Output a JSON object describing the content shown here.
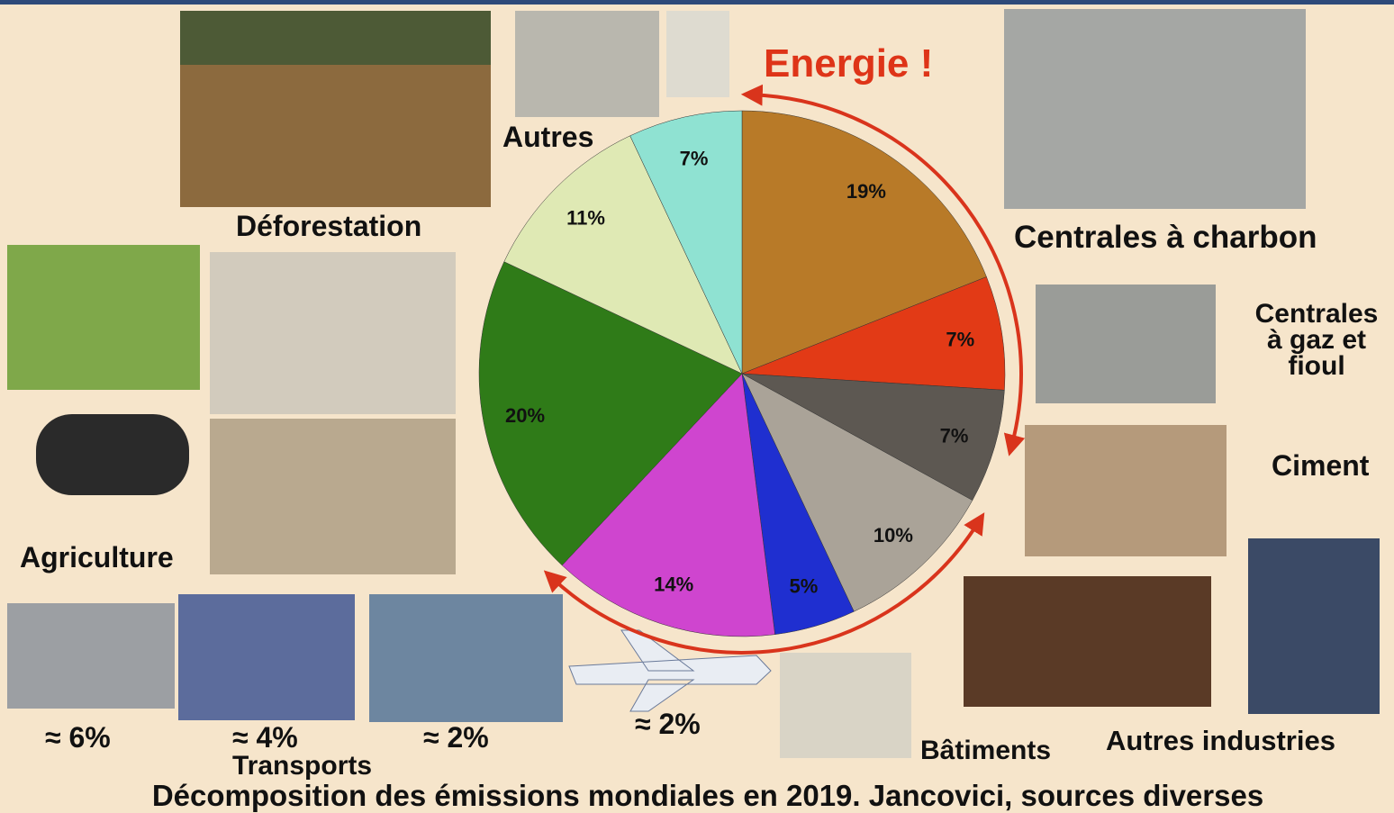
{
  "chart_data": {
    "type": "pie",
    "title": "Décomposition des émissions mondiales en 2019. Jancovici, sources diverses",
    "values": [
      19,
      7,
      7,
      10,
      5,
      14,
      20,
      11,
      7
    ],
    "value_labels": [
      "19%",
      "7%",
      "7%",
      "10%",
      "5%",
      "14%",
      "20%",
      "11%",
      "7%"
    ],
    "colors": [
      "#b87a28",
      "#e23a16",
      "#5d5852",
      "#aaa398",
      "#1f2fd0",
      "#cf45cf",
      "#2f7b18",
      "#dfe9b4",
      "#8fe2d2"
    ],
    "annotations": [
      "Energie !",
      "Autres",
      "Déforestation",
      "Centrales à charbon",
      "Centrales",
      "à gaz et",
      "fioul",
      "Ciment",
      "Agriculture",
      "≈ 6%",
      "≈ 4%",
      "Transports",
      "≈ 2%",
      "≈ 2%",
      "Bâtiments",
      "Autres industries"
    ]
  }
}
